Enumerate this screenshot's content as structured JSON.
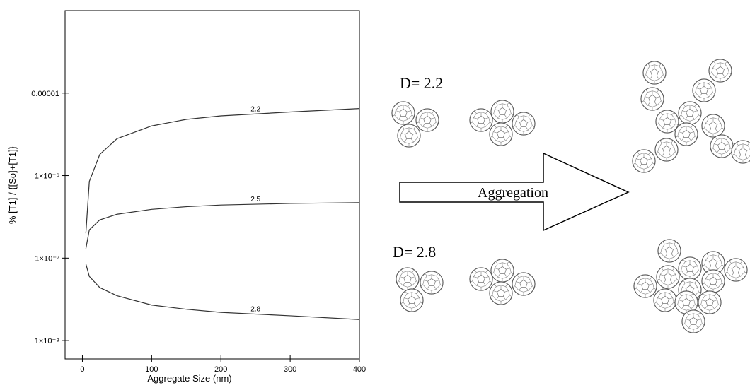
{
  "chart_data": {
    "type": "line",
    "x_label": "Aggregate Size (nm)",
    "y_label": "% [T1] / {[So]+[T1]}",
    "x": [
      5,
      10,
      25,
      50,
      100,
      150,
      200,
      300,
      400
    ],
    "series": [
      {
        "name": "2.2",
        "color": "#333333",
        "values": [
          2e-07,
          8.5e-07,
          1.8e-06,
          2.8e-06,
          4e-06,
          4.8e-06,
          5.3e-06,
          5.9e-06,
          6.5e-06
        ]
      },
      {
        "name": "2.5",
        "color": "#333333",
        "values": [
          1.3e-07,
          2.2e-07,
          2.9e-07,
          3.4e-07,
          3.9e-07,
          4.2e-07,
          4.4e-07,
          4.6e-07,
          4.7e-07
        ]
      },
      {
        "name": "2.8",
        "color": "#333333",
        "values": [
          8.5e-08,
          6e-08,
          4.4e-08,
          3.5e-08,
          2.7e-08,
          2.4e-08,
          2.2e-08,
          2e-08,
          1.8e-08
        ]
      }
    ],
    "xlim": [
      -25,
      400
    ],
    "xticks": [
      0,
      100,
      200,
      300,
      400
    ],
    "ylim": [
      6e-09,
      0.0001
    ],
    "ylog": true,
    "yticks": [
      {
        "value": 1e-05,
        "label": "0.00001"
      },
      {
        "value": 1e-06,
        "label": "1×10⁻⁶"
      },
      {
        "value": 1e-07,
        "label": "1×10⁻⁷"
      },
      {
        "value": 1e-08,
        "label": "1×10⁻⁸"
      }
    ]
  },
  "diagram": {
    "label_top": "D= 2.2",
    "label_bottom": "D= 2.8",
    "arrow_label": "Aggregation"
  }
}
